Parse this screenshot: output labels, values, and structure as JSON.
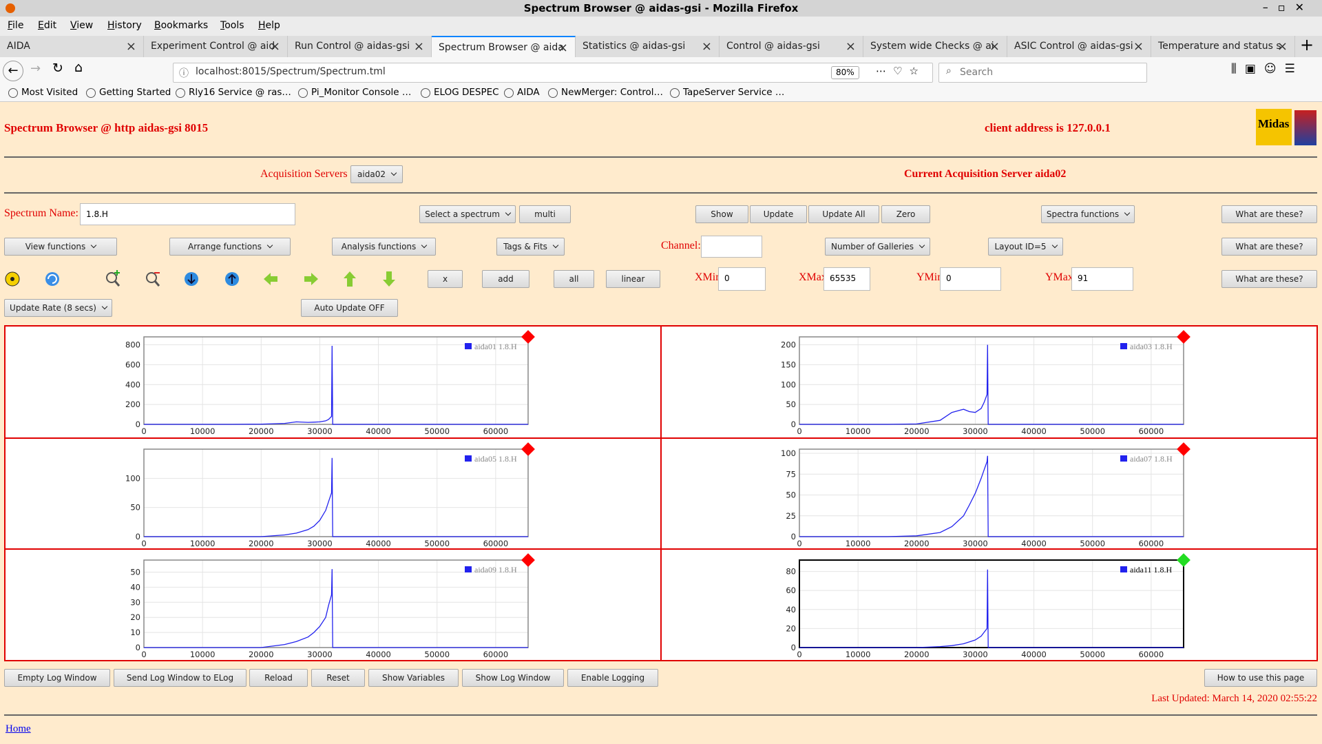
{
  "window": {
    "title": "Spectrum Browser @ aidas-gsi - Mozilla Firefox"
  },
  "menu": [
    "File",
    "Edit",
    "View",
    "History",
    "Bookmarks",
    "Tools",
    "Help"
  ],
  "tabs": [
    "AIDA",
    "Experiment Control @ aid",
    "Run Control @ aidas-gsi",
    "Spectrum Browser @ aida",
    "Statistics @ aidas-gsi",
    "Control @ aidas-gsi",
    "System wide Checks @ ai",
    "ASIC Control @ aidas-gsi",
    "Temperature and status s"
  ],
  "address": {
    "url": "localhost:8015/Spectrum/Spectrum.tml",
    "zoom": "80%",
    "search": "Search"
  },
  "bookmarks": [
    "Most Visited",
    "Getting Started",
    "Rly16 Service @ ras…",
    "Pi_Monitor Console …",
    "ELOG DESPEC",
    "AIDA",
    "NewMerger: Control…",
    "TapeServer Service …"
  ],
  "header": {
    "title": "Spectrum Browser @ http aidas-gsi 8015",
    "client": "client address is 127.0.0.1",
    "logo": "Midas"
  },
  "acquisition": {
    "label": "Acquisition Servers",
    "server": "aida02",
    "current": "Current Acquisition Server aida02"
  },
  "spectrum": {
    "label": "Spectrum Name:",
    "value": "1.8.H"
  },
  "buttons": {
    "select": "Select a spectrum",
    "multi": "multi",
    "show": "Show",
    "update": "Update",
    "update_all": "Update All",
    "zero": "Zero",
    "spectra_functions": "Spectra functions",
    "help": [
      "What are these?",
      "What are these?",
      "What are these?"
    ],
    "view": "View functions",
    "arrange": "Arrange functions",
    "analysis": "Analysis functions",
    "tags": "Tags & Fits",
    "galleries": "Number of Galleries",
    "layout": "Layout ID=5",
    "x": "x",
    "add": "add",
    "all": "all",
    "linear": "linear",
    "update_rate": "Update Rate (8 secs)",
    "auto_update": "Auto Update OFF"
  },
  "channel": {
    "label": "Channel:"
  },
  "limits": {
    "xmin_label": "XMin",
    "xmin": 0,
    "xmax_label": "XMax",
    "xmax": 65535,
    "ymin_label": "YMin",
    "ymin": 0,
    "ymax_label": "YMax",
    "ymax": 91
  },
  "chart_data": [
    {
      "type": "line",
      "x": [
        0,
        5000,
        10000,
        15000,
        20000,
        24000,
        26000,
        28000,
        29000,
        30000,
        31000,
        31500,
        32000,
        32100,
        32200,
        36000,
        45000,
        55000,
        65535
      ],
      "series": [
        {
          "name": "aida01 1.8.H",
          "color": "#2222ee",
          "values": [
            0,
            0,
            0,
            0,
            2,
            10,
            25,
            20,
            22,
            25,
            35,
            50,
            80,
            790,
            0,
            0,
            0,
            0,
            0
          ]
        }
      ],
      "xlim": [
        0,
        65535
      ],
      "xticks": [
        0,
        10000,
        20000,
        30000,
        40000,
        50000,
        60000
      ],
      "ylim": [
        0,
        880
      ],
      "yticks": [
        0,
        200,
        400,
        600,
        800
      ],
      "grid": true,
      "status_color": "#ff0000",
      "frame_color": "#888888"
    },
    {
      "type": "line",
      "x": [
        0,
        5000,
        10000,
        15000,
        20000,
        24000,
        26000,
        28000,
        29000,
        30000,
        31000,
        31500,
        32000,
        32100,
        32200,
        36000,
        45000,
        55000,
        65535
      ],
      "series": [
        {
          "name": "aida03 1.8.H",
          "color": "#2222ee",
          "values": [
            0,
            0,
            0,
            0,
            1,
            10,
            30,
            38,
            32,
            30,
            40,
            55,
            75,
            200,
            0,
            0,
            0,
            0,
            0
          ]
        }
      ],
      "xlim": [
        0,
        65535
      ],
      "xticks": [
        0,
        10000,
        20000,
        30000,
        40000,
        50000,
        60000
      ],
      "ylim": [
        0,
        220
      ],
      "yticks": [
        0,
        50,
        100,
        150,
        200
      ],
      "grid": true,
      "status_color": "#ff0000",
      "frame_color": "#888888"
    },
    {
      "type": "line",
      "x": [
        0,
        5000,
        10000,
        15000,
        20000,
        24000,
        26000,
        28000,
        29000,
        30000,
        31000,
        31500,
        32000,
        32100,
        32200,
        36000,
        45000,
        55000,
        65535
      ],
      "series": [
        {
          "name": "aida05 1.8.H",
          "color": "#2222ee",
          "values": [
            0,
            0,
            0,
            0,
            0,
            3,
            6,
            12,
            18,
            28,
            45,
            60,
            75,
            135,
            0,
            0,
            0,
            0,
            0
          ]
        }
      ],
      "xlim": [
        0,
        65535
      ],
      "xticks": [
        0,
        10000,
        20000,
        30000,
        40000,
        50000,
        60000
      ],
      "ylim": [
        0,
        150
      ],
      "yticks": [
        0,
        50,
        100
      ],
      "grid": true,
      "status_color": "#ff0000",
      "frame_color": "#888888"
    },
    {
      "type": "line",
      "x": [
        0,
        5000,
        10000,
        15000,
        20000,
        24000,
        26000,
        28000,
        29000,
        30000,
        31000,
        31500,
        32000,
        32100,
        32200,
        36000,
        45000,
        55000,
        65535
      ],
      "series": [
        {
          "name": "aida07 1.8.H",
          "color": "#2222ee",
          "values": [
            0,
            0,
            0,
            0,
            1,
            5,
            12,
            25,
            38,
            52,
            70,
            80,
            90,
            97,
            0,
            0,
            0,
            0,
            0
          ]
        }
      ],
      "xlim": [
        0,
        65535
      ],
      "xticks": [
        0,
        10000,
        20000,
        30000,
        40000,
        50000,
        60000
      ],
      "ylim": [
        0,
        105
      ],
      "yticks": [
        0,
        25,
        50,
        75,
        100
      ],
      "grid": true,
      "status_color": "#ff0000",
      "frame_color": "#888888"
    },
    {
      "type": "line",
      "x": [
        0,
        5000,
        10000,
        15000,
        20000,
        24000,
        26000,
        28000,
        29000,
        30000,
        31000,
        31500,
        32000,
        32100,
        32200,
        36000,
        45000,
        55000,
        65535
      ],
      "series": [
        {
          "name": "aida09 1.8.H",
          "color": "#2222ee",
          "values": [
            0,
            0,
            0,
            0,
            0,
            2,
            4,
            7,
            10,
            14,
            20,
            28,
            35,
            52,
            0,
            0,
            0,
            0,
            0
          ]
        }
      ],
      "xlim": [
        0,
        65535
      ],
      "xticks": [
        0,
        10000,
        20000,
        30000,
        40000,
        50000,
        60000
      ],
      "ylim": [
        0,
        58
      ],
      "yticks": [
        0,
        10,
        20,
        30,
        40,
        50
      ],
      "grid": true,
      "status_color": "#ff0000",
      "frame_color": "#888888"
    },
    {
      "type": "line",
      "x": [
        0,
        5000,
        10000,
        15000,
        20000,
        24000,
        26000,
        28000,
        29000,
        30000,
        31000,
        31500,
        32000,
        32100,
        32200,
        36000,
        45000,
        55000,
        65535
      ],
      "series": [
        {
          "name": "aida11 1.8.H",
          "color": "#2222ee",
          "values": [
            0,
            0,
            0,
            0,
            0,
            1,
            2,
            4,
            6,
            8,
            12,
            16,
            20,
            82,
            0,
            0,
            0,
            0,
            0
          ]
        }
      ],
      "xlim": [
        0,
        65535
      ],
      "xticks": [
        0,
        10000,
        20000,
        30000,
        40000,
        50000,
        60000
      ],
      "ylim": [
        0,
        92
      ],
      "yticks": [
        0,
        20,
        40,
        60,
        80
      ],
      "grid": true,
      "status_color": "#22dd22",
      "frame_color": "#000000"
    }
  ],
  "footer": {
    "buttons": [
      "Empty Log Window",
      "Send Log Window to ELog",
      "Reload",
      "Reset",
      "Show Variables",
      "Show Log Window",
      "Enable Logging"
    ],
    "help": "How to use this page",
    "last_updated": "Last Updated: March 14, 2020 02:55:22",
    "home": "Home"
  }
}
